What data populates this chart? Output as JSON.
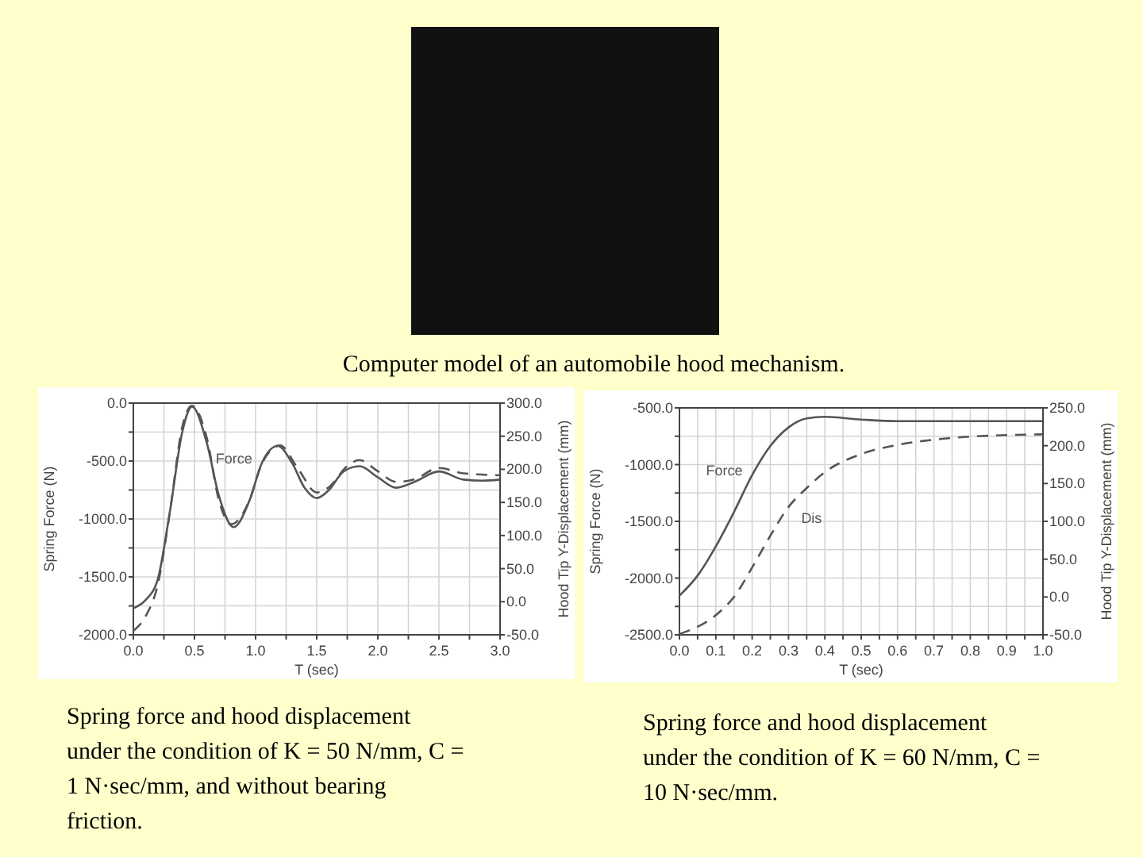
{
  "chart_data": [
    {
      "type": "line",
      "title": "Computer model of an automobile hood mechanism.",
      "xlabel": "T (sec)",
      "ylabel": "Spring Force (N)",
      "y2label": "Hood Tip Y-Displacement (mm)",
      "grid": true,
      "xlim": [
        0,
        3
      ],
      "xticks": [
        {
          "value": 0,
          "label": "0.0"
        },
        {
          "value": 0.25,
          "label": null
        },
        {
          "value": 0.5,
          "label": "0.5"
        },
        {
          "value": 0.75,
          "label": null
        },
        {
          "value": 1,
          "label": "1.0"
        },
        {
          "value": 1.25,
          "label": null
        },
        {
          "value": 1.5,
          "label": "1.5"
        },
        {
          "value": 1.75,
          "label": null
        },
        {
          "value": 2,
          "label": "2.0"
        },
        {
          "value": 2.25,
          "label": null
        },
        {
          "value": 2.5,
          "label": "2.5"
        },
        {
          "value": 2.75,
          "label": null
        },
        {
          "value": 3,
          "label": "3.0"
        }
      ],
      "ylim": [
        -2000,
        0
      ],
      "yticks": [
        {
          "value": -2000,
          "label": "-2000.0"
        },
        {
          "value": -1750,
          "label": null
        },
        {
          "value": -1500,
          "label": "-1500.0"
        },
        {
          "value": -1250,
          "label": null
        },
        {
          "value": -1000,
          "label": "-1000.0"
        },
        {
          "value": -750,
          "label": null
        },
        {
          "value": -500,
          "label": "-500.0"
        },
        {
          "value": -250,
          "label": null
        },
        {
          "value": 0,
          "label": "0.0"
        }
      ],
      "y2lim": [
        -50,
        300
      ],
      "y2ticks": [
        {
          "value": -50,
          "label": "-50.0"
        },
        {
          "value": 0,
          "label": "0.0"
        },
        {
          "value": 50,
          "label": "50.0"
        },
        {
          "value": 100,
          "label": "100.0"
        },
        {
          "value": 150,
          "label": "150.0"
        },
        {
          "value": 200,
          "label": "200.0"
        },
        {
          "value": 250,
          "label": "250.0"
        },
        {
          "value": 300,
          "label": "300.0"
        }
      ],
      "series": [
        {
          "name": "Force",
          "color": "#555555",
          "line_style": "solid",
          "x": [
            0,
            0.1,
            0.2,
            0.3,
            0.4,
            0.48,
            0.6,
            0.7,
            0.82,
            0.95,
            1.05,
            1.18,
            1.3,
            1.4,
            1.5,
            1.6,
            1.72,
            1.85,
            2.0,
            2.15,
            2.3,
            2.5,
            2.7,
            2.85,
            3.0
          ],
          "values": [
            -1770,
            -1700,
            -1520,
            -930,
            -250,
            -30,
            -340,
            -800,
            -1070,
            -840,
            -520,
            -370,
            -520,
            -730,
            -820,
            -750,
            -590,
            -545,
            -640,
            -730,
            -680,
            -590,
            -660,
            -670,
            -660
          ]
        },
        {
          "color": "#555555",
          "line_style": "dashed",
          "axis": "y2",
          "x": [
            0,
            0.1,
            0.2,
            0.3,
            0.4,
            0.48,
            0.6,
            0.7,
            0.8,
            0.95,
            1.05,
            1.2,
            1.35,
            1.5,
            1.6,
            1.75,
            1.85,
            2.0,
            2.15,
            2.3,
            2.5,
            2.7,
            3.0
          ],
          "values": [
            -44,
            -22,
            26,
            137,
            264,
            296,
            248,
            153,
            117,
            153,
            208,
            236,
            200,
            165,
            173,
            205,
            214,
            197,
            181,
            185,
            202,
            194,
            191
          ]
        }
      ],
      "annotations": [
        "Spring force and hood displacement under the condition of K = 50 N/mm, C = 1 N·sec/mm, and without bearing friction."
      ]
    },
    {
      "type": "line",
      "xlabel": "T (sec)",
      "ylabel": "Spring Force (N)",
      "y2label": "Hood Tip Y-Displacement (mm)",
      "grid": true,
      "xlim": [
        0,
        1
      ],
      "xticks": [
        {
          "value": 0,
          "label": "0.0"
        },
        {
          "value": 0.05,
          "label": null
        },
        {
          "value": 0.1,
          "label": "0.1"
        },
        {
          "value": 0.15,
          "label": null
        },
        {
          "value": 0.2,
          "label": "0.2"
        },
        {
          "value": 0.25,
          "label": null
        },
        {
          "value": 0.3,
          "label": "0.3"
        },
        {
          "value": 0.35,
          "label": null
        },
        {
          "value": 0.4,
          "label": "0.4"
        },
        {
          "value": 0.45,
          "label": null
        },
        {
          "value": 0.5,
          "label": "0.5"
        },
        {
          "value": 0.55,
          "label": null
        },
        {
          "value": 0.6,
          "label": "0.6"
        },
        {
          "value": 0.65,
          "label": null
        },
        {
          "value": 0.7,
          "label": "0.7"
        },
        {
          "value": 0.75,
          "label": null
        },
        {
          "value": 0.8,
          "label": "0.8"
        },
        {
          "value": 0.85,
          "label": null
        },
        {
          "value": 0.9,
          "label": "0.9"
        },
        {
          "value": 0.95,
          "label": null
        },
        {
          "value": 1,
          "label": "1.0"
        }
      ],
      "ylim": [
        -2500,
        -500
      ],
      "yticks": [
        {
          "value": -2500,
          "label": "-2500.0"
        },
        {
          "value": -2250,
          "label": null
        },
        {
          "value": -2000,
          "label": "-2000.0"
        },
        {
          "value": -1750,
          "label": null
        },
        {
          "value": -1500,
          "label": "-1500.0"
        },
        {
          "value": -1250,
          "label": null
        },
        {
          "value": -1000,
          "label": "-1000.0"
        },
        {
          "value": -750,
          "label": null
        },
        {
          "value": -500,
          "label": "-500.0"
        }
      ],
      "y2lim": [
        -50,
        250
      ],
      "y2ticks": [
        {
          "value": -50,
          "label": "-50.0"
        },
        {
          "value": 0,
          "label": "0.0"
        },
        {
          "value": 50,
          "label": "50.0"
        },
        {
          "value": 100,
          "label": "100.0"
        },
        {
          "value": 150,
          "label": "150.0"
        },
        {
          "value": 200,
          "label": "200.0"
        },
        {
          "value": 250,
          "label": "250.0"
        }
      ],
      "series": [
        {
          "name": "Force",
          "color": "#555555",
          "line_style": "solid",
          "x": [
            0,
            0.05,
            0.1,
            0.15,
            0.2,
            0.25,
            0.3,
            0.35,
            0.4,
            0.5,
            0.6,
            1.0
          ],
          "values": [
            -2155,
            -1978,
            -1721,
            -1418,
            -1092,
            -836,
            -672,
            -593,
            -579,
            -603,
            -617,
            -617
          ]
        },
        {
          "name": "Dis",
          "color": "#555555",
          "line_style": "dashed",
          "axis": "y2",
          "x": [
            0,
            0.1,
            0.15,
            0.2,
            0.25,
            0.3,
            0.35,
            0.4,
            0.5,
            0.6,
            0.7,
            0.8,
            0.9,
            1.0
          ],
          "values": [
            -49,
            -24,
            0,
            39,
            81,
            119,
            144,
            165,
            189,
            201,
            208,
            212,
            214,
            215
          ]
        }
      ],
      "annotations": [
        "Spring force and hood displacement under the condition of K = 60 N/mm, C = 10 N·sec/mm."
      ]
    }
  ]
}
